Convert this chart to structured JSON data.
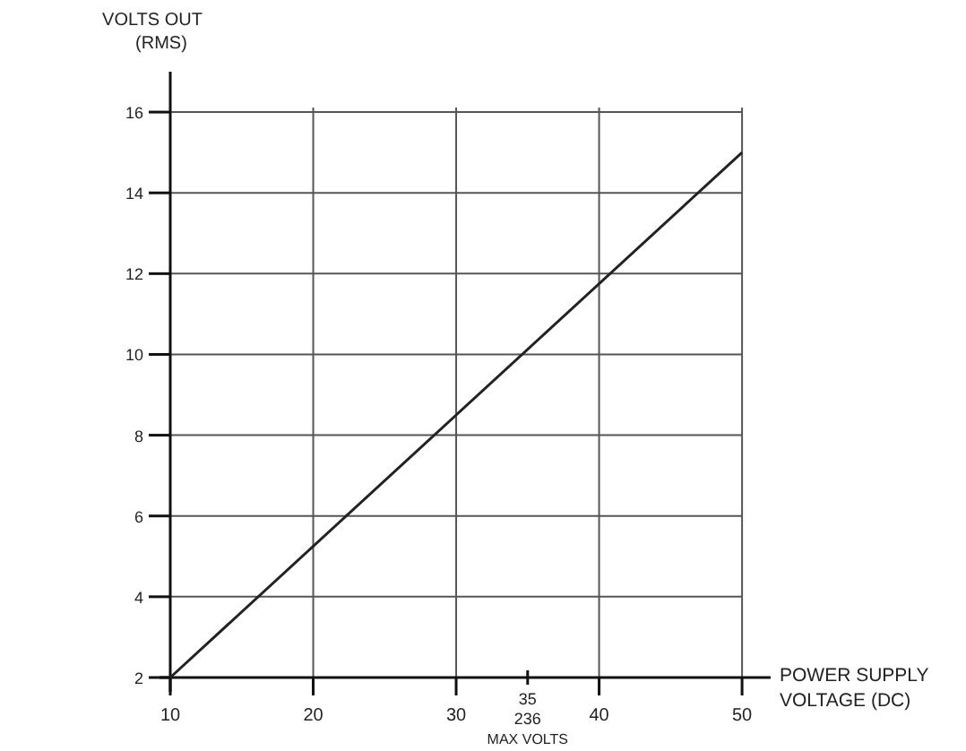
{
  "chart_data": {
    "type": "line",
    "xlabel": "POWER SUPPLY\nVOLTAGE (DC)",
    "ylabel": "VOLTS OUT\n(RMS)",
    "x": [
      10,
      50
    ],
    "series": [
      {
        "color": "#222222",
        "values": [
          2,
          15
        ]
      }
    ],
    "xlim": [
      10,
      52
    ],
    "ylim": [
      2,
      17
    ],
    "xticks": [
      10,
      20,
      30,
      {
        "value": 35,
        "label": null
      },
      40,
      50
    ],
    "yticks": [
      2,
      4,
      6,
      8,
      10,
      12,
      14,
      16
    ],
    "annotations": [
      "35",
      "236",
      "MAX VOLTS"
    ],
    "grid": true,
    "marker": "none",
    "line_style": "solid"
  }
}
